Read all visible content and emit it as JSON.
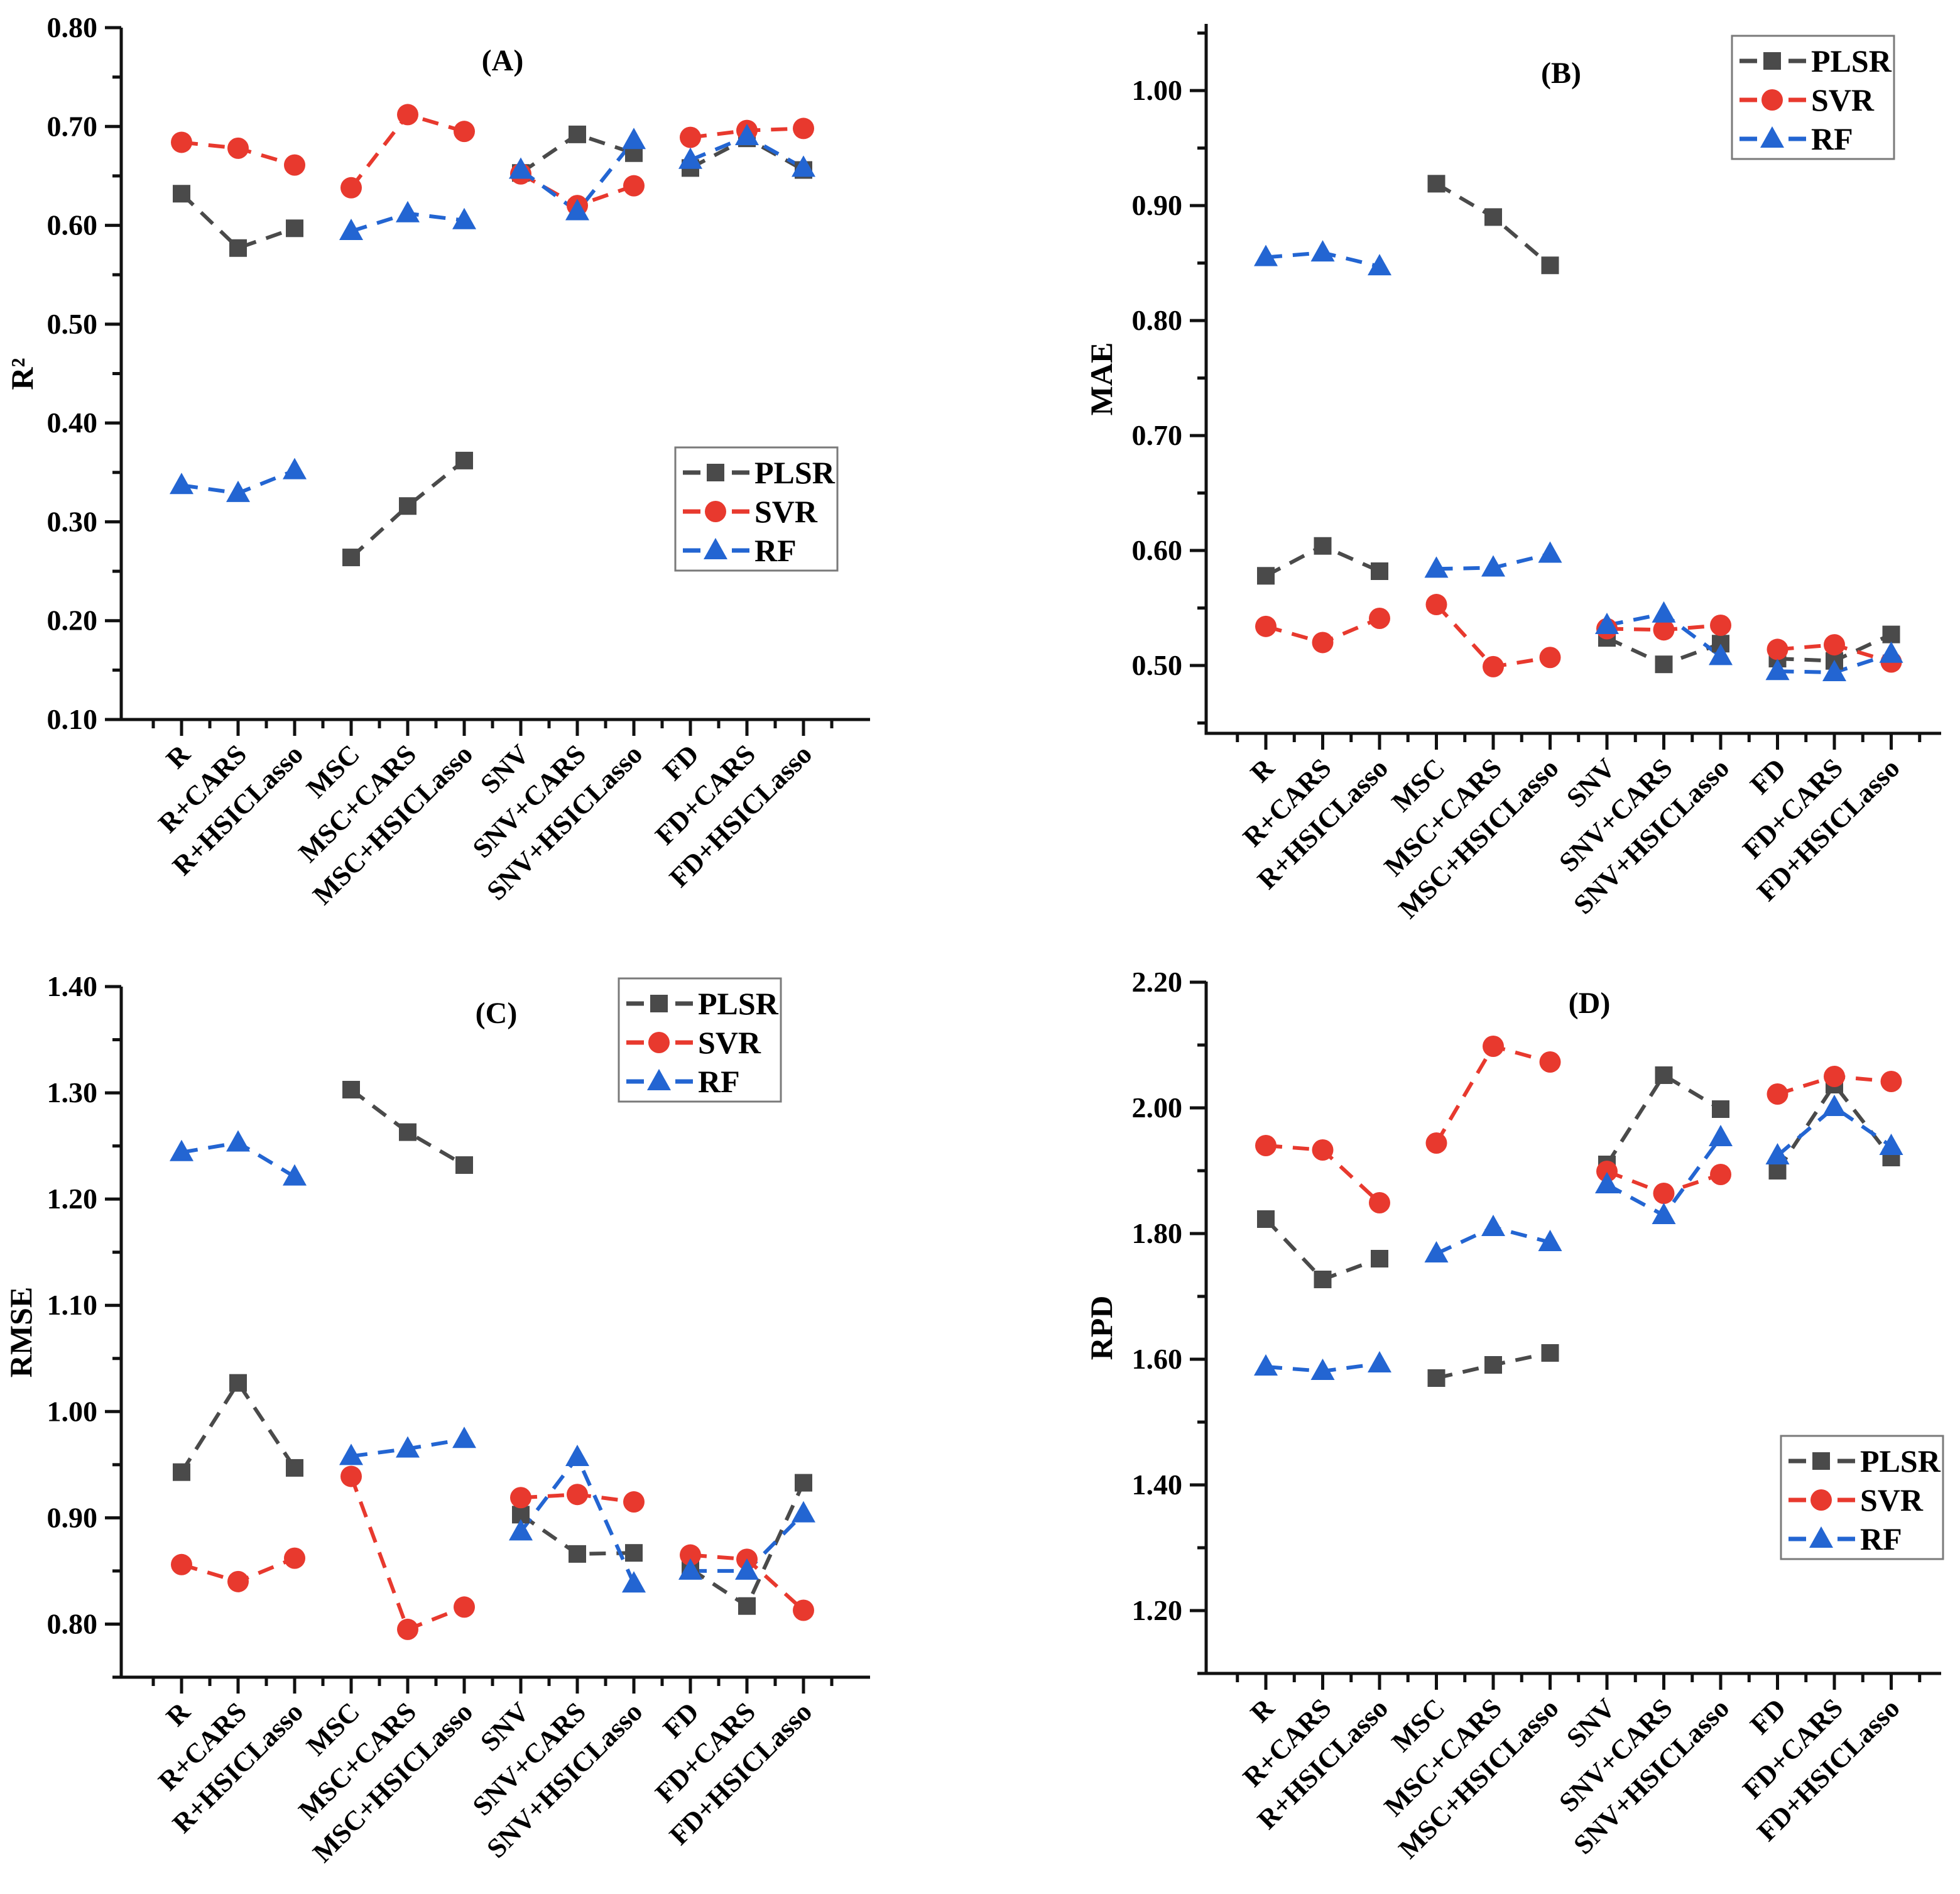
{
  "figure_title": "",
  "colors": {
    "plsr": "#4a4a4a",
    "svr": "#e8392e",
    "rf": "#2365d2",
    "legend_border": "#7a7a7a",
    "axis": "#111111",
    "background": "#ffffff"
  },
  "legend_labels": [
    "PLSR",
    "SVR",
    "RF"
  ],
  "chart_data": [
    {
      "panel_label": "(A)",
      "type": "line",
      "ylabel": "R²",
      "xlabel": "",
      "grid": false,
      "legend_position": "inside-middle-right",
      "categories": [
        "R",
        "R+CARS",
        "R+HSICLasso",
        "MSC",
        "MSC+CARS",
        "MSC+HSICLasso",
        "SNV",
        "SNV+CARS",
        "SNV+HSICLasso",
        "FD",
        "FD+CARS",
        "FD+HSICLasso"
      ],
      "ylim": [
        0.1,
        0.8
      ],
      "yticks": [
        0.1,
        0.2,
        0.3,
        0.4,
        0.5,
        0.6,
        0.7,
        0.8
      ],
      "minor_step": 0.05,
      "tick_decimals": 2,
      "line_groups": [
        [
          0,
          1,
          2
        ],
        [
          3,
          4,
          5
        ],
        [
          6,
          7,
          8
        ],
        [
          9,
          10,
          11
        ]
      ],
      "series": [
        {
          "name": "PLSR",
          "marker": "square",
          "color": "#4a4a4a",
          "values": [
            0.632,
            0.577,
            0.597,
            0.264,
            0.316,
            0.362,
            0.653,
            0.692,
            0.673,
            0.658,
            0.688,
            0.656
          ]
        },
        {
          "name": "SVR",
          "marker": "circle",
          "color": "#e8392e",
          "values": [
            0.684,
            0.678,
            0.661,
            0.638,
            0.712,
            0.695,
            0.652,
            0.62,
            0.64,
            0.689,
            0.696,
            0.698
          ]
        },
        {
          "name": "RF",
          "marker": "triangle",
          "color": "#2365d2",
          "values": [
            0.337,
            0.329,
            0.352,
            0.594,
            0.612,
            0.605,
            0.656,
            0.614,
            0.686,
            0.666,
            0.69,
            0.658
          ]
        }
      ]
    },
    {
      "panel_label": "(B)",
      "type": "line",
      "ylabel": "MAE",
      "xlabel": "",
      "grid": false,
      "legend_position": "inside-top-right",
      "categories": [
        "R",
        "R+CARS",
        "R+HSICLasso",
        "MSC",
        "MSC+CARS",
        "MSC+HSICLasso",
        "SNV",
        "SNV+CARS",
        "SNV+HSICLasso",
        "FD",
        "FD+CARS",
        "FD+HSICLasso"
      ],
      "ylim": [
        0.441,
        1.058
      ],
      "yticks": [
        0.5,
        0.6,
        0.7,
        0.8,
        0.9,
        1.0
      ],
      "minor_step": 0.05,
      "tick_decimals": 2,
      "line_groups": [
        [
          0,
          1,
          2
        ],
        [
          3,
          4,
          5
        ],
        [
          6,
          7,
          8
        ],
        [
          9,
          10,
          11
        ]
      ],
      "series": [
        {
          "name": "PLSR",
          "marker": "square",
          "color": "#4a4a4a",
          "values": [
            0.578,
            0.604,
            0.582,
            0.919,
            0.89,
            0.848,
            0.524,
            0.501,
            0.519,
            0.506,
            0.504,
            0.527
          ]
        },
        {
          "name": "SVR",
          "marker": "circle",
          "color": "#e8392e",
          "values": [
            0.534,
            0.52,
            0.541,
            0.553,
            0.499,
            0.507,
            0.532,
            0.531,
            0.535,
            0.514,
            0.518,
            0.503
          ]
        },
        {
          "name": "RF",
          "marker": "triangle",
          "color": "#2365d2",
          "values": [
            0.855,
            0.859,
            0.847,
            0.584,
            0.585,
            0.597,
            0.535,
            0.545,
            0.508,
            0.495,
            0.494,
            0.51
          ]
        }
      ]
    },
    {
      "panel_label": "(C)",
      "type": "line",
      "ylabel": "RMSE",
      "xlabel": "",
      "grid": false,
      "legend_position": "inside-top-right",
      "categories": [
        "R",
        "R+CARS",
        "R+HSICLasso",
        "MSC",
        "MSC+CARS",
        "MSC+HSICLasso",
        "SNV",
        "SNV+CARS",
        "SNV+HSICLasso",
        "FD",
        "FD+CARS",
        "FD+HSICLasso"
      ],
      "ylim": [
        0.75,
        1.4
      ],
      "yticks": [
        0.8,
        0.9,
        1.0,
        1.1,
        1.2,
        1.3,
        1.4
      ],
      "minor_step": 0.05,
      "tick_decimals": 2,
      "line_groups": [
        [
          0,
          1,
          2
        ],
        [
          3,
          4,
          5
        ],
        [
          6,
          7,
          8
        ],
        [
          9,
          10,
          11
        ]
      ],
      "series": [
        {
          "name": "PLSR",
          "marker": "square",
          "color": "#4a4a4a",
          "values": [
            0.943,
            1.027,
            0.947,
            1.303,
            1.263,
            1.232,
            0.903,
            0.866,
            0.867,
            0.852,
            0.817,
            0.933
          ]
        },
        {
          "name": "SVR",
          "marker": "circle",
          "color": "#e8392e",
          "values": [
            0.856,
            0.84,
            0.862,
            0.939,
            0.795,
            0.816,
            0.919,
            0.922,
            0.915,
            0.865,
            0.861,
            0.813
          ]
        },
        {
          "name": "RF",
          "marker": "triangle",
          "color": "#2365d2",
          "values": [
            1.244,
            1.253,
            1.221,
            0.958,
            0.965,
            0.974,
            0.887,
            0.957,
            0.838,
            0.85,
            0.85,
            0.904
          ]
        }
      ]
    },
    {
      "panel_label": "(D)",
      "type": "line",
      "ylabel": "RPD",
      "xlabel": "",
      "grid": false,
      "legend_position": "inside-lower-right",
      "categories": [
        "R",
        "R+CARS",
        "R+HSICLasso",
        "MSC",
        "MSC+CARS",
        "MSC+HSICLasso",
        "SNV",
        "SNV+CARS",
        "SNV+HSICLasso",
        "FD",
        "FD+CARS",
        "FD+HSICLasso"
      ],
      "ylim": [
        1.1,
        2.201
      ],
      "yticks": [
        1.2,
        1.4,
        1.6,
        1.8,
        2.0,
        2.2
      ],
      "minor_step": 0.1,
      "tick_decimals": 2,
      "line_groups": [
        [
          0,
          1,
          2
        ],
        [
          3,
          4,
          5
        ],
        [
          6,
          7,
          8
        ],
        [
          9,
          10,
          11
        ]
      ],
      "series": [
        {
          "name": "PLSR",
          "marker": "square",
          "color": "#4a4a4a",
          "values": [
            1.823,
            1.727,
            1.76,
            1.57,
            1.591,
            1.61,
            1.91,
            2.052,
            1.998,
            1.9,
            2.037,
            1.921
          ]
        },
        {
          "name": "SVR",
          "marker": "circle",
          "color": "#e8392e",
          "values": [
            1.94,
            1.933,
            1.849,
            1.944,
            2.098,
            2.073,
            1.899,
            1.864,
            1.894,
            2.022,
            2.05,
            2.042
          ]
        },
        {
          "name": "RF",
          "marker": "triangle",
          "color": "#2365d2",
          "values": [
            1.588,
            1.581,
            1.593,
            1.768,
            1.81,
            1.786,
            1.878,
            1.829,
            1.953,
            1.924,
            2.001,
            1.939
          ]
        }
      ]
    }
  ]
}
